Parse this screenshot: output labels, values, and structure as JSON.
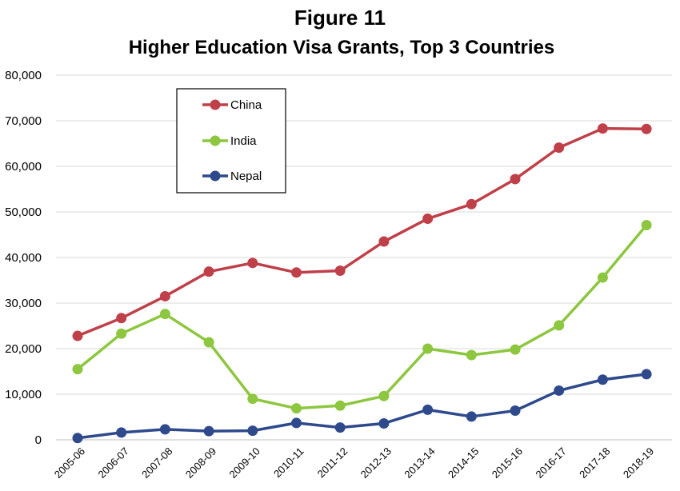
{
  "chart_data": {
    "type": "line",
    "title": "Figure 11",
    "subtitle": "Higher Education Visa Grants, Top 3 Countries",
    "xlabel": "",
    "ylabel": "",
    "categories": [
      "2005-06",
      "2006-07",
      "2007-08",
      "2008-09",
      "2009-10",
      "2010-11",
      "2011-12",
      "2012-13",
      "2013-14",
      "2014-15",
      "2015-16",
      "2016-17",
      "2017-18",
      "2018-19"
    ],
    "ylim": [
      0,
      80000
    ],
    "yticks": [
      0,
      10000,
      20000,
      30000,
      40000,
      50000,
      60000,
      70000,
      80000
    ],
    "ytick_labels": [
      "0",
      "10,000",
      "20,000",
      "30,000",
      "40,000",
      "50,000",
      "60,000",
      "70,000",
      "80,000"
    ],
    "grid": true,
    "legend_position": "top-left",
    "series": [
      {
        "name": "China",
        "color": "#c0404a",
        "values": [
          22800,
          26700,
          31500,
          36900,
          38800,
          36700,
          37100,
          43500,
          48500,
          51700,
          57200,
          64100,
          68300,
          68200
        ]
      },
      {
        "name": "India",
        "color": "#8dc63f",
        "values": [
          15500,
          23300,
          27600,
          21400,
          9000,
          6900,
          7500,
          9600,
          20000,
          18600,
          19800,
          25100,
          35600,
          47100
        ]
      },
      {
        "name": "Nepal",
        "color": "#2e4a8c",
        "values": [
          400,
          1600,
          2300,
          1900,
          2000,
          3700,
          2700,
          3600,
          6600,
          5100,
          6400,
          10800,
          13200,
          14400
        ]
      }
    ]
  }
}
